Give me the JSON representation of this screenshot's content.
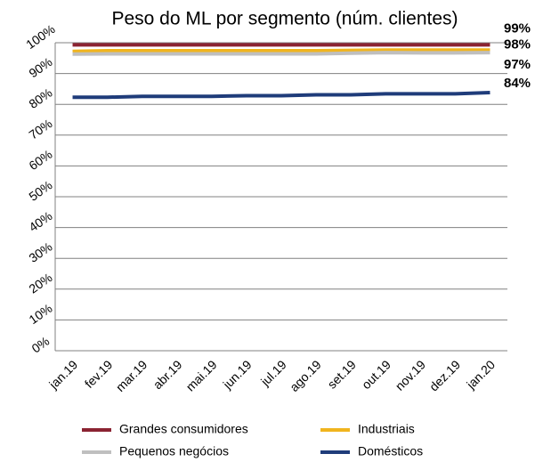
{
  "chart_data": {
    "type": "line",
    "title": "Peso do ML por segmento (núm. clientes)",
    "categories": [
      "jan.19",
      "fev.19",
      "mar.19",
      "abr.19",
      "mai.19",
      "jun.19",
      "jul.19",
      "ago.19",
      "set.19",
      "out.19",
      "nov.19",
      "dez.19",
      "jan.20"
    ],
    "series": [
      {
        "name": "Grandes consumidores",
        "color": "#8b2332",
        "values": [
          99.3,
          99.3,
          99.3,
          99.3,
          99.3,
          99.3,
          99.3,
          99.3,
          99.3,
          99.3,
          99.3,
          99.3,
          99.3
        ],
        "value_labels": [
          null,
          null,
          null,
          null,
          null,
          null,
          null,
          null,
          null,
          null,
          null,
          null,
          "99%"
        ]
      },
      {
        "name": "Industriais",
        "color": "#f0b41e",
        "values": [
          97.2,
          97.4,
          97.4,
          97.4,
          97.4,
          97.4,
          97.4,
          97.4,
          97.5,
          97.6,
          97.6,
          97.6,
          97.6
        ],
        "value_labels": [
          null,
          null,
          null,
          null,
          null,
          null,
          null,
          null,
          null,
          null,
          null,
          null,
          "98%"
        ]
      },
      {
        "name": "Pequenos negócios",
        "color": "#bfbfbf",
        "values": [
          96.3,
          96.4,
          96.4,
          96.4,
          96.4,
          96.4,
          96.4,
          96.4,
          96.6,
          96.8,
          96.7,
          96.7,
          96.8
        ],
        "value_labels": [
          null,
          null,
          null,
          null,
          null,
          null,
          null,
          null,
          null,
          null,
          null,
          null,
          "97%"
        ]
      },
      {
        "name": "Domésticos",
        "color": "#1f3c7a",
        "values": [
          82.3,
          82.3,
          82.6,
          82.6,
          82.6,
          82.8,
          82.8,
          83.1,
          83.1,
          83.4,
          83.4,
          83.4,
          83.8
        ],
        "value_labels": [
          null,
          null,
          null,
          null,
          null,
          null,
          null,
          null,
          null,
          null,
          null,
          null,
          "84%"
        ]
      }
    ],
    "ylim": [
      0,
      100
    ],
    "yticks": [
      {
        "value": 0,
        "label": "0%"
      },
      {
        "value": 10,
        "label": "10%"
      },
      {
        "value": 20,
        "label": "20%"
      },
      {
        "value": 30,
        "label": "30%"
      },
      {
        "value": 40,
        "label": "40%"
      },
      {
        "value": 50,
        "label": "50%"
      },
      {
        "value": 60,
        "label": "60%"
      },
      {
        "value": 70,
        "label": "70%"
      },
      {
        "value": 80,
        "label": "80%"
      },
      {
        "value": 90,
        "label": "90%"
      },
      {
        "value": 100,
        "label": "100%"
      }
    ],
    "grid": true
  }
}
